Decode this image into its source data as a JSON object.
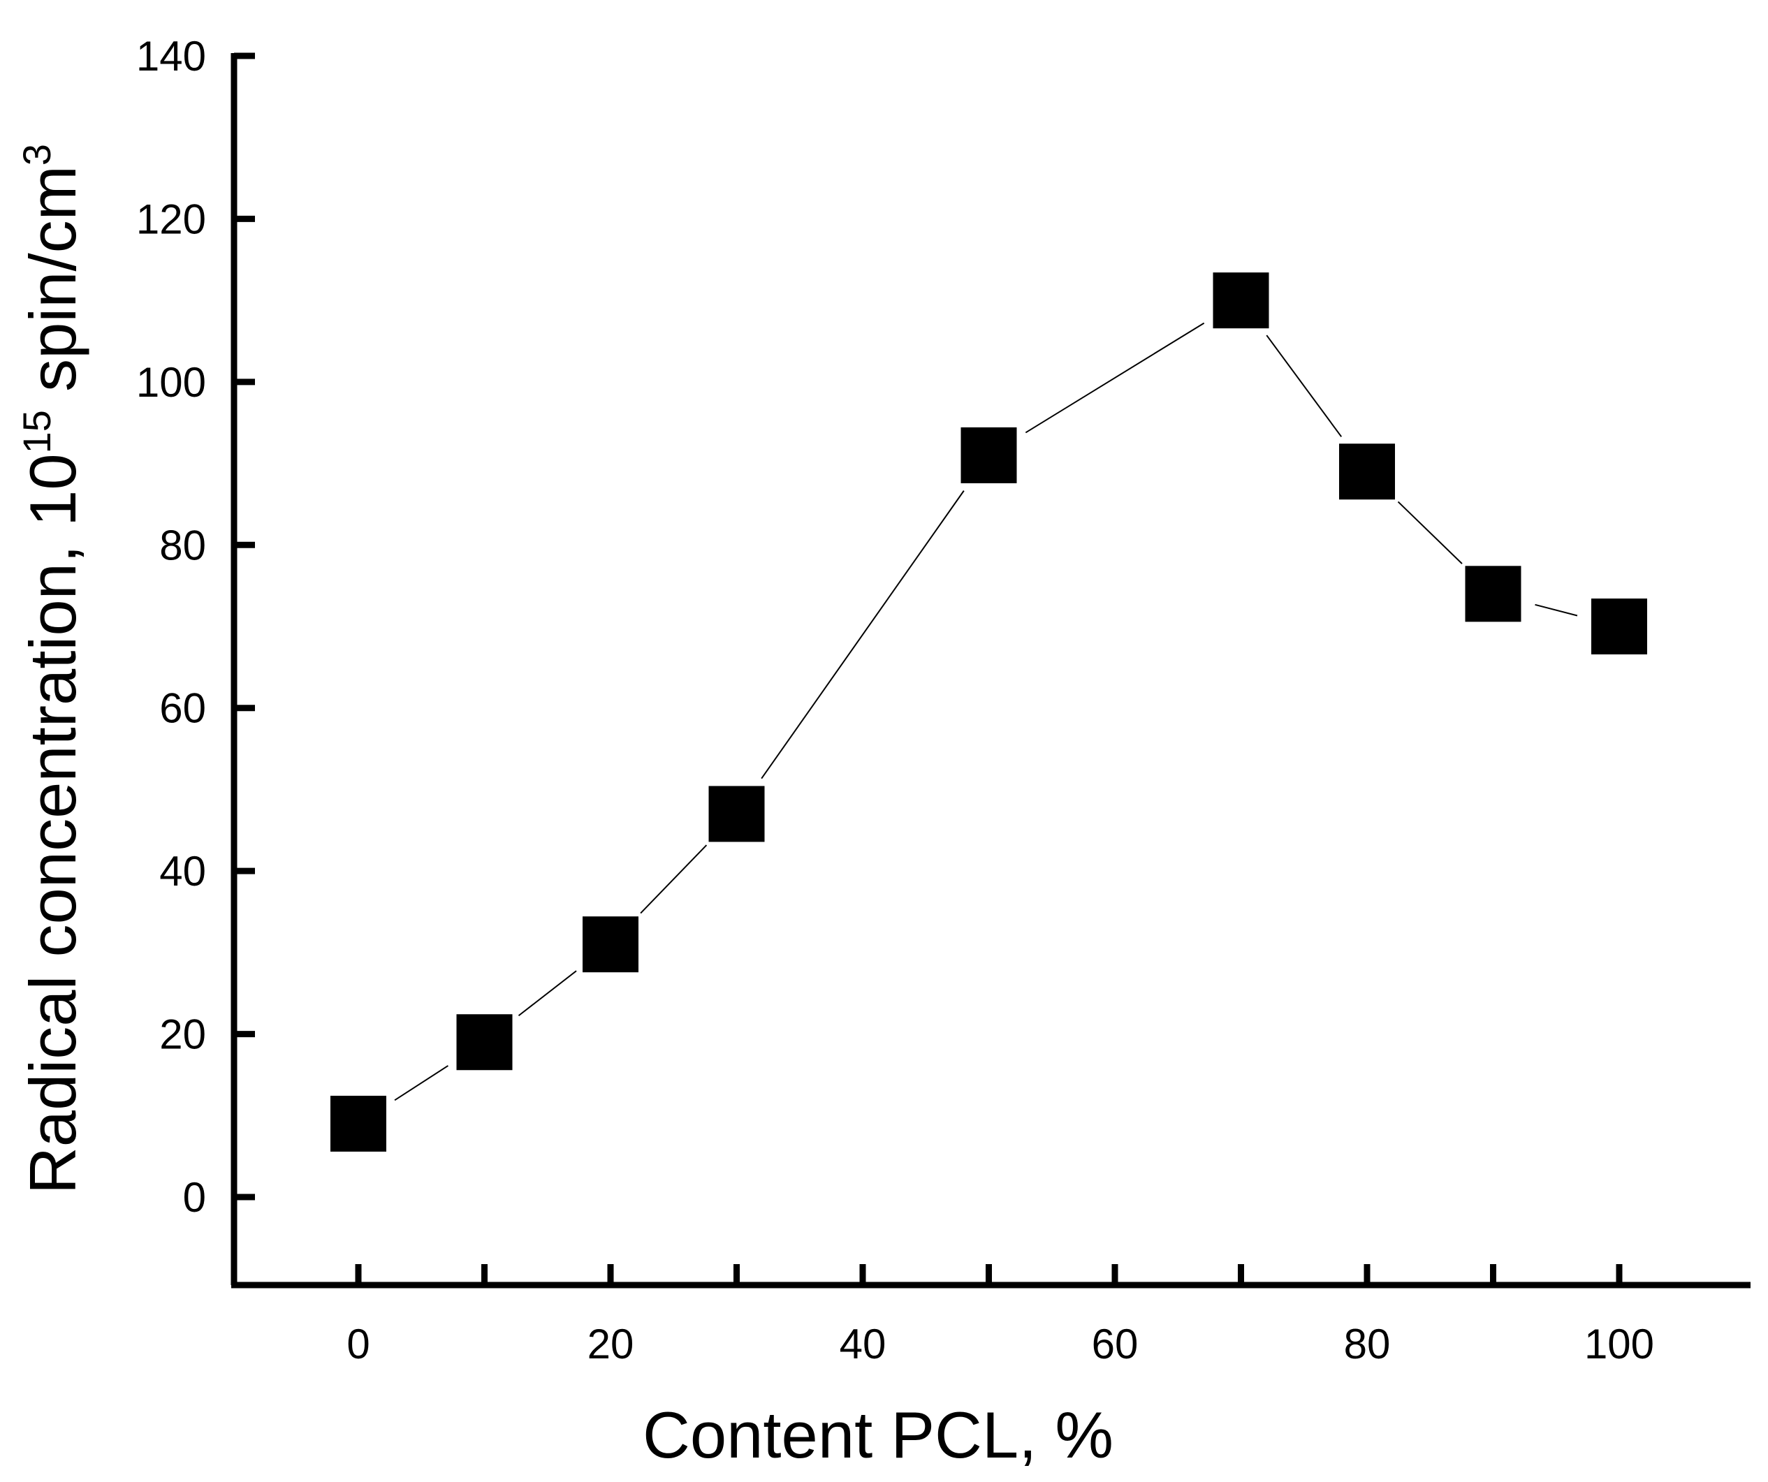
{
  "chart_data": {
    "type": "line",
    "xlabel": "Content PCL, %",
    "ylabel": {
      "prefix": "Radical concentration, 10",
      "exp1": "15",
      "middle": " spin/cm",
      "exp2": "3"
    },
    "xlim": [
      -10,
      110
    ],
    "ylim": [
      -10,
      140
    ],
    "xticks": [
      0,
      20,
      40,
      60,
      80,
      100
    ],
    "xminor_ticks": [
      10,
      30,
      50,
      70,
      90
    ],
    "yticks": [
      0,
      20,
      40,
      60,
      80,
      100,
      120,
      140
    ],
    "grid": false,
    "marker": "filled-square",
    "series": [
      {
        "x": [
          0,
          10,
          20,
          30,
          50,
          70,
          80,
          90,
          100
        ],
        "y": [
          9,
          19,
          31,
          47,
          91,
          110,
          89,
          74,
          70
        ]
      }
    ]
  }
}
